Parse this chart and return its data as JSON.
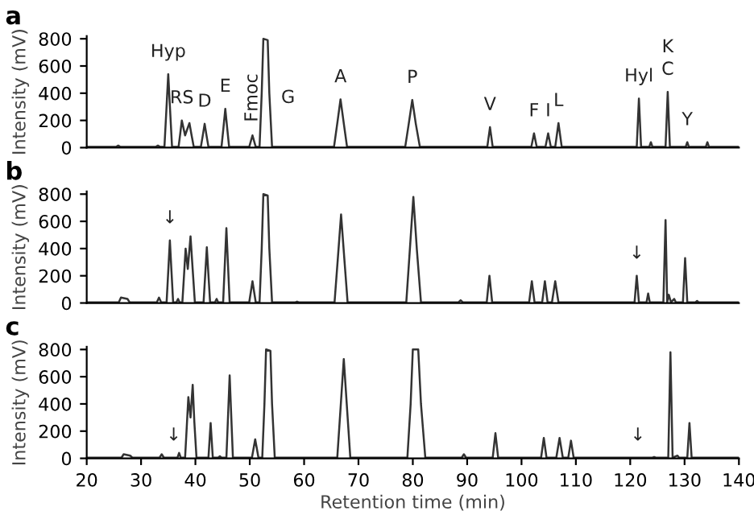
{
  "chart_data": [
    {
      "type": "line",
      "title": "a",
      "ylabel": "Intensity (mV)",
      "xlim": [
        20,
        140
      ],
      "ylim": [
        0,
        820
      ],
      "yticks": [
        0,
        200,
        400,
        600,
        800
      ],
      "tick_labels": "y",
      "series": [
        {
          "color": "#333333",
          "x": [
            20,
            25.4,
            25.8,
            26.2,
            32.7,
            33.1,
            33.5,
            34.3,
            34.65,
            35.0,
            35.35,
            35.7,
            36.9,
            37.2,
            37.5,
            38.1,
            38.9,
            39.3,
            39.7,
            41.0,
            41.35,
            41.7,
            42.05,
            42.4,
            44.8,
            45.15,
            45.5,
            45.85,
            46.2,
            49.9,
            50.5,
            51.1,
            51.8,
            52.2,
            52.5,
            53.3,
            53.6,
            54.1,
            65.5,
            66.1,
            66.7,
            67.3,
            67.9,
            78.6,
            79.25,
            79.9,
            80.55,
            81.3,
            93.7,
            94.2,
            94.7,
            101.8,
            102.3,
            102.8,
            104.4,
            104.9,
            105.4,
            106.2,
            106.8,
            107.4,
            121.2,
            121.6,
            122.0,
            123.5,
            123.8,
            124.1,
            126.5,
            126.9,
            127.3,
            130.2,
            130.5,
            130.8,
            133.9,
            134.2,
            134.5,
            140
          ],
          "values": [
            5,
            5,
            15,
            5,
            5,
            15,
            5,
            5,
            270,
            540,
            270,
            5,
            5,
            100,
            200,
            90,
            180,
            90,
            5,
            5,
            88,
            175,
            88,
            5,
            5,
            143,
            285,
            143,
            5,
            5,
            90,
            5,
            5,
            400,
            800,
            790,
            400,
            5,
            5,
            178,
            355,
            178,
            5,
            5,
            175,
            350,
            175,
            5,
            5,
            150,
            5,
            5,
            105,
            5,
            5,
            105,
            5,
            5,
            180,
            5,
            5,
            360,
            5,
            5,
            40,
            5,
            5,
            410,
            5,
            5,
            40,
            5,
            5,
            40,
            5,
            5
          ]
        }
      ],
      "annotations": [
        {
          "text": "Hyp",
          "x": 35.0,
          "y": 540
        },
        {
          "text": "RS",
          "x": 37.5,
          "y": 200
        },
        {
          "text": "D",
          "x": 41.7,
          "y": 175
        },
        {
          "text": "E",
          "x": 45.5,
          "y": 285
        },
        {
          "text": "Fmoc",
          "x": 50.5,
          "y": 90
        },
        {
          "text": "G",
          "x": 53.3,
          "y": 790
        },
        {
          "text": "A",
          "x": 66.7,
          "y": 355
        },
        {
          "text": "P",
          "x": 79.9,
          "y": 350
        },
        {
          "text": "V",
          "x": 94.2,
          "y": 150
        },
        {
          "text": "F",
          "x": 102.3,
          "y": 105
        },
        {
          "text": "I",
          "x": 104.9,
          "y": 105
        },
        {
          "text": "L",
          "x": 106.8,
          "y": 180
        },
        {
          "text": "Hyl",
          "x": 121.6,
          "y": 360
        },
        {
          "text": "C",
          "x": 126.9,
          "y": 410
        },
        {
          "text": "K",
          "x": 126.9,
          "y": 410
        },
        {
          "text": "Y",
          "x": 130.5,
          "y": 40
        }
      ]
    },
    {
      "type": "line",
      "title": "b",
      "ylabel": "Intensity (mV)",
      "xlim": [
        20,
        140
      ],
      "ylim": [
        0,
        820
      ],
      "yticks": [
        0,
        200,
        400,
        600,
        800
      ],
      "tick_labels": "y",
      "series": [
        {
          "color": "#333333",
          "x": [
            20,
            25.9,
            26.3,
            27.5,
            27.9,
            32.9,
            33.3,
            33.7,
            34.7,
            35.0,
            35.3,
            35.6,
            35.9,
            36.5,
            36.8,
            37.1,
            37.6,
            37.9,
            38.2,
            38.6,
            39.1,
            39.5,
            39.9,
            41.5,
            41.8,
            42.1,
            42.4,
            42.7,
            43.6,
            43.9,
            44.2,
            45.1,
            45.4,
            45.7,
            46.0,
            46.3,
            49.9,
            50.5,
            51.1,
            51.8,
            52.2,
            52.5,
            53.3,
            53.6,
            54.1,
            58.4,
            58.7,
            59.0,
            65.6,
            66.2,
            66.8,
            67.4,
            68.0,
            78.8,
            79.45,
            80.1,
            80.75,
            81.5,
            88.4,
            88.8,
            89.2,
            93.6,
            94.1,
            94.6,
            101.4,
            101.9,
            102.4,
            103.8,
            104.3,
            104.8,
            105.6,
            106.2,
            106.8,
            120.8,
            121.2,
            121.6,
            123.0,
            123.3,
            123.6,
            126.1,
            126.5,
            126.8,
            127.1,
            127.5,
            128.1,
            128.4,
            129.7,
            130.1,
            130.5,
            132.0,
            132.3,
            132.6,
            140
          ],
          "values": [
            5,
            5,
            40,
            30,
            5,
            5,
            40,
            5,
            5,
            230,
            460,
            230,
            5,
            5,
            30,
            5,
            5,
            200,
            400,
            250,
            490,
            245,
            5,
            5,
            205,
            410,
            205,
            5,
            5,
            30,
            5,
            5,
            275,
            550,
            275,
            5,
            5,
            160,
            5,
            5,
            400,
            800,
            790,
            400,
            5,
            5,
            10,
            5,
            5,
            325,
            650,
            325,
            5,
            5,
            390,
            780,
            390,
            5,
            5,
            20,
            5,
            5,
            200,
            5,
            5,
            160,
            5,
            5,
            160,
            5,
            5,
            160,
            5,
            5,
            200,
            5,
            5,
            70,
            5,
            5,
            610,
            5,
            60,
            5,
            30,
            5,
            5,
            330,
            5,
            5,
            15,
            5,
            5
          ]
        }
      ],
      "annotations": [
        {
          "text": "↓",
          "x": 35.3,
          "y": 460
        },
        {
          "text": "↓",
          "x": 121.2,
          "y": 200
        }
      ]
    },
    {
      "type": "line",
      "title": "c",
      "ylabel": "Intensity (mV)",
      "xlabel": "Retention time (min)",
      "xlim": [
        20,
        140
      ],
      "ylim": [
        0,
        820
      ],
      "xticks": [
        20,
        30,
        40,
        50,
        60,
        70,
        80,
        90,
        100,
        110,
        120,
        130,
        140
      ],
      "yticks": [
        0,
        200,
        400,
        600,
        800
      ],
      "series": [
        {
          "color": "#333333",
          "x": [
            20,
            26.4,
            26.8,
            28.0,
            28.4,
            33.4,
            33.8,
            34.2,
            36.0,
            36.7,
            37.0,
            37.3,
            38.1,
            38.4,
            38.7,
            39.1,
            39.5,
            39.8,
            40.2,
            42.4,
            42.8,
            43.2,
            44.2,
            44.5,
            44.8,
            45.7,
            46.0,
            46.3,
            46.6,
            46.9,
            50.4,
            51.0,
            51.6,
            52.3,
            52.7,
            53.0,
            53.8,
            54.1,
            54.6,
            66.1,
            66.7,
            67.3,
            67.9,
            68.5,
            79.0,
            79.6,
            80.0,
            81.0,
            81.5,
            82.3,
            89.0,
            89.4,
            89.8,
            94.7,
            95.2,
            95.7,
            103.6,
            104.1,
            104.6,
            106.4,
            107.0,
            107.6,
            108.6,
            109.1,
            109.6,
            121.4,
            124.1,
            124.4,
            124.7,
            127.0,
            127.4,
            127.8,
            128.7,
            129.0,
            130.5,
            130.9,
            131.3,
            140
          ],
          "values": [
            5,
            5,
            30,
            20,
            5,
            5,
            30,
            5,
            5,
            5,
            40,
            5,
            5,
            225,
            450,
            300,
            540,
            270,
            5,
            5,
            260,
            5,
            5,
            15,
            5,
            5,
            305,
            610,
            305,
            5,
            5,
            140,
            5,
            5,
            400,
            800,
            790,
            400,
            5,
            5,
            365,
            730,
            365,
            5,
            5,
            400,
            800,
            800,
            400,
            5,
            5,
            30,
            5,
            5,
            185,
            5,
            5,
            150,
            5,
            5,
            150,
            5,
            5,
            130,
            5,
            5,
            5,
            10,
            5,
            5,
            780,
            5,
            20,
            5,
            5,
            260,
            5,
            5
          ]
        }
      ],
      "annotations": [
        {
          "text": "↓",
          "x": 36.0,
          "y": 5
        },
        {
          "text": "↓",
          "x": 121.4,
          "y": 5
        }
      ]
    }
  ]
}
